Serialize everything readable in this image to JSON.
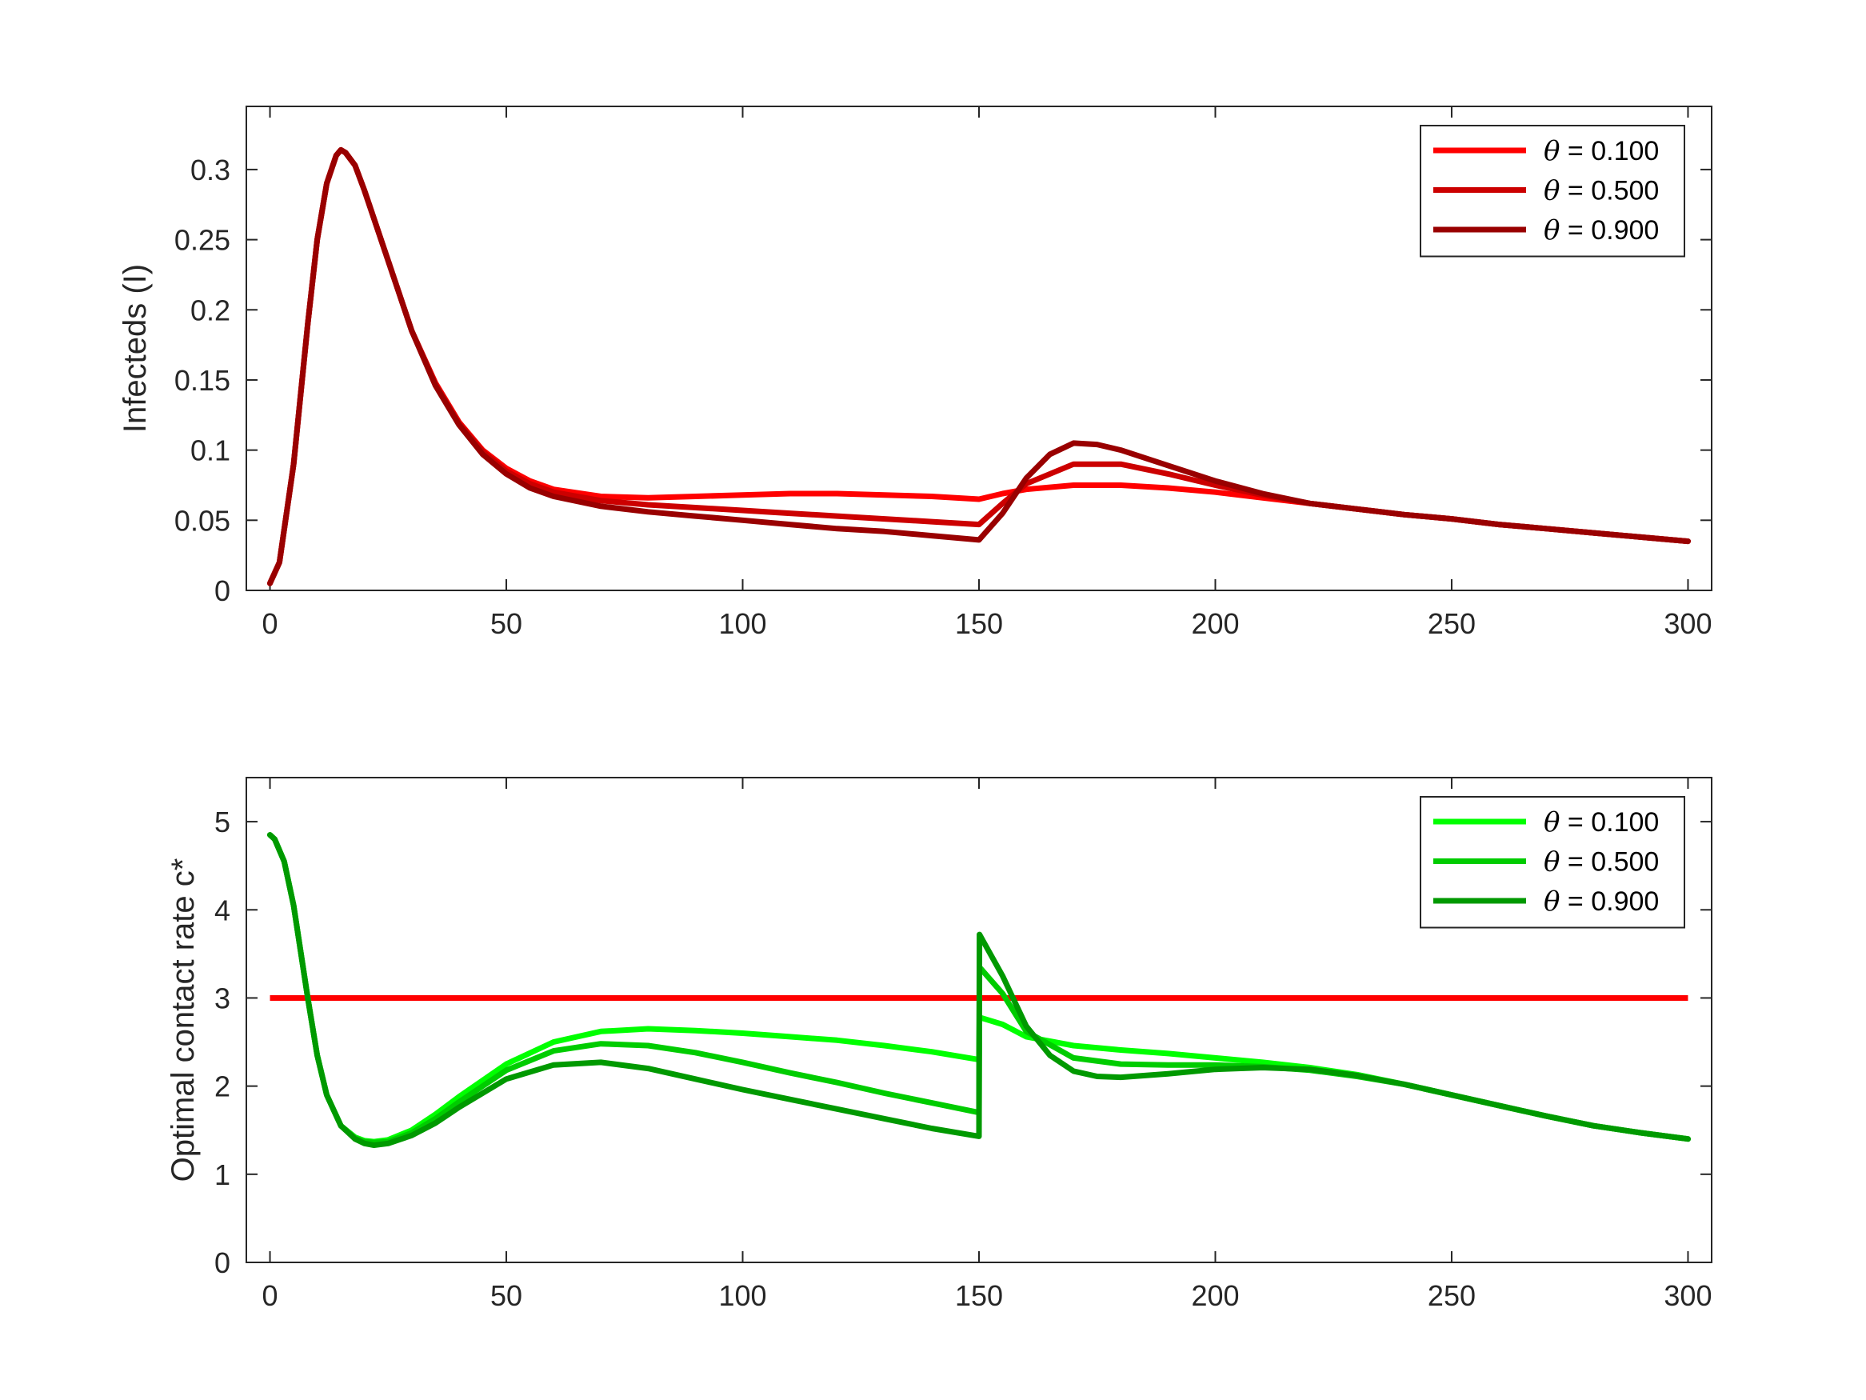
{
  "chart_data": [
    {
      "type": "line",
      "panel": "top",
      "title": "",
      "xlabel": "",
      "ylabel": "Infecteds (I)",
      "xlim": [
        -5,
        305
      ],
      "ylim": [
        0,
        0.345
      ],
      "xticks": [
        0,
        50,
        100,
        150,
        200,
        250,
        300
      ],
      "xtick_labels": [
        "0",
        "50",
        "100",
        "150",
        "200",
        "250",
        "300"
      ],
      "yticks": [
        0,
        0.05,
        0.1,
        0.15,
        0.2,
        0.25,
        0.3
      ],
      "ytick_labels": [
        "0",
        "0.05",
        "0.1",
        "0.15",
        "0.2",
        "0.25",
        "0.3"
      ],
      "grid": false,
      "legend_position": "top-right",
      "series": [
        {
          "name": "θ = 0.100",
          "legend_symbol": "θ",
          "legend_text": " = 0.100",
          "color": "#ff0000",
          "x": [
            0,
            2,
            5,
            8,
            10,
            12,
            14,
            15,
            16,
            18,
            20,
            25,
            30,
            35,
            40,
            45,
            50,
            55,
            60,
            70,
            80,
            90,
            100,
            110,
            120,
            130,
            140,
            150,
            155,
            160,
            170,
            180,
            190,
            200,
            210,
            220,
            230,
            240,
            250,
            260,
            270,
            280,
            290,
            300
          ],
          "y": [
            0.005,
            0.02,
            0.09,
            0.19,
            0.25,
            0.29,
            0.31,
            0.314,
            0.312,
            0.303,
            0.285,
            0.235,
            0.185,
            0.148,
            0.12,
            0.1,
            0.087,
            0.078,
            0.072,
            0.067,
            0.066,
            0.067,
            0.068,
            0.069,
            0.069,
            0.068,
            0.067,
            0.065,
            0.069,
            0.072,
            0.075,
            0.075,
            0.073,
            0.07,
            0.066,
            0.062,
            0.058,
            0.054,
            0.051,
            0.047,
            0.044,
            0.041,
            0.038,
            0.035
          ]
        },
        {
          "name": "θ = 0.500",
          "legend_symbol": "θ",
          "legend_text": " = 0.500",
          "color": "#cc0000",
          "x": [
            0,
            2,
            5,
            8,
            10,
            12,
            14,
            15,
            16,
            18,
            20,
            25,
            30,
            35,
            40,
            45,
            50,
            55,
            60,
            70,
            80,
            90,
            100,
            110,
            120,
            130,
            140,
            150,
            155,
            160,
            170,
            180,
            190,
            200,
            210,
            220,
            230,
            240,
            250,
            260,
            270,
            280,
            290,
            300
          ],
          "y": [
            0.005,
            0.02,
            0.09,
            0.19,
            0.25,
            0.29,
            0.31,
            0.314,
            0.312,
            0.303,
            0.285,
            0.235,
            0.185,
            0.147,
            0.119,
            0.099,
            0.085,
            0.076,
            0.07,
            0.064,
            0.061,
            0.059,
            0.057,
            0.055,
            0.053,
            0.051,
            0.049,
            0.047,
            0.062,
            0.076,
            0.09,
            0.09,
            0.083,
            0.075,
            0.068,
            0.062,
            0.058,
            0.054,
            0.051,
            0.047,
            0.044,
            0.041,
            0.038,
            0.035
          ]
        },
        {
          "name": "θ = 0.900",
          "legend_symbol": "θ",
          "legend_text": " = 0.900",
          "color": "#990000",
          "x": [
            0,
            2,
            5,
            8,
            10,
            12,
            14,
            15,
            16,
            18,
            20,
            25,
            30,
            35,
            40,
            45,
            50,
            55,
            60,
            70,
            80,
            90,
            100,
            110,
            120,
            130,
            140,
            150,
            155,
            160,
            165,
            170,
            175,
            180,
            190,
            200,
            210,
            220,
            230,
            240,
            250,
            260,
            270,
            280,
            290,
            300
          ],
          "y": [
            0.005,
            0.02,
            0.09,
            0.19,
            0.25,
            0.29,
            0.31,
            0.314,
            0.312,
            0.303,
            0.285,
            0.235,
            0.185,
            0.146,
            0.118,
            0.097,
            0.083,
            0.073,
            0.067,
            0.06,
            0.056,
            0.053,
            0.05,
            0.047,
            0.044,
            0.042,
            0.039,
            0.036,
            0.055,
            0.08,
            0.097,
            0.105,
            0.104,
            0.1,
            0.089,
            0.078,
            0.069,
            0.062,
            0.058,
            0.054,
            0.051,
            0.047,
            0.044,
            0.041,
            0.038,
            0.035
          ]
        }
      ]
    },
    {
      "type": "line",
      "panel": "bottom",
      "title": "",
      "xlabel": "",
      "ylabel": "Optimal contact rate c*",
      "xlim": [
        -5,
        305
      ],
      "ylim": [
        0,
        5.5
      ],
      "xticks": [
        0,
        50,
        100,
        150,
        200,
        250,
        300
      ],
      "xtick_labels": [
        "0",
        "50",
        "100",
        "150",
        "200",
        "250",
        "300"
      ],
      "yticks": [
        0,
        1,
        2,
        3,
        4,
        5
      ],
      "ytick_labels": [
        "0",
        "1",
        "2",
        "3",
        "4",
        "5"
      ],
      "grid": false,
      "legend_position": "top-right",
      "baseline": {
        "color": "#ff0000",
        "x": [
          0,
          300
        ],
        "y": [
          3,
          3
        ]
      },
      "series": [
        {
          "name": "θ = 0.100",
          "legend_symbol": "θ",
          "legend_text": " = 0.100",
          "color": "#00ff00",
          "x": [
            0,
            1,
            3,
            5,
            8,
            10,
            12,
            15,
            18,
            20,
            22,
            25,
            30,
            35,
            40,
            50,
            60,
            70,
            80,
            90,
            100,
            110,
            120,
            130,
            140,
            150,
            150.1,
            155,
            160,
            170,
            180,
            190,
            200,
            210,
            220,
            230,
            240,
            250,
            260,
            270,
            280,
            290,
            300
          ],
          "y": [
            4.85,
            4.8,
            4.55,
            4.05,
            3.0,
            2.35,
            1.9,
            1.55,
            1.42,
            1.38,
            1.37,
            1.39,
            1.5,
            1.68,
            1.88,
            2.25,
            2.5,
            2.62,
            2.65,
            2.63,
            2.6,
            2.56,
            2.52,
            2.46,
            2.39,
            2.3,
            2.78,
            2.7,
            2.56,
            2.46,
            2.41,
            2.37,
            2.32,
            2.27,
            2.21,
            2.13,
            2.02,
            1.9,
            1.78,
            1.66,
            1.55,
            1.47,
            1.4
          ]
        },
        {
          "name": "θ = 0.500",
          "legend_symbol": "θ",
          "legend_text": " = 0.500",
          "color": "#00cc00",
          "x": [
            0,
            1,
            3,
            5,
            8,
            10,
            12,
            15,
            18,
            20,
            22,
            25,
            30,
            35,
            40,
            50,
            60,
            70,
            80,
            90,
            100,
            110,
            120,
            130,
            140,
            150,
            150.1,
            155,
            160,
            170,
            180,
            190,
            200,
            210,
            220,
            230,
            240,
            250,
            260,
            270,
            280,
            290,
            300
          ],
          "y": [
            4.85,
            4.8,
            4.55,
            4.05,
            3.0,
            2.35,
            1.9,
            1.55,
            1.41,
            1.37,
            1.36,
            1.37,
            1.47,
            1.63,
            1.82,
            2.18,
            2.4,
            2.48,
            2.46,
            2.38,
            2.27,
            2.15,
            2.04,
            1.92,
            1.81,
            1.7,
            3.35,
            3.05,
            2.62,
            2.32,
            2.25,
            2.24,
            2.24,
            2.22,
            2.18,
            2.11,
            2.02,
            1.9,
            1.78,
            1.66,
            1.55,
            1.47,
            1.4
          ]
        },
        {
          "name": "θ = 0.900",
          "legend_symbol": "θ",
          "legend_text": " = 0.900",
          "color": "#009900",
          "x": [
            0,
            1,
            3,
            5,
            8,
            10,
            12,
            15,
            18,
            20,
            22,
            25,
            30,
            35,
            40,
            50,
            60,
            70,
            80,
            90,
            100,
            110,
            120,
            130,
            140,
            150,
            150.1,
            155,
            160,
            165,
            170,
            175,
            180,
            190,
            200,
            210,
            220,
            230,
            240,
            250,
            260,
            270,
            280,
            290,
            300
          ],
          "y": [
            4.85,
            4.8,
            4.55,
            4.05,
            3.0,
            2.35,
            1.9,
            1.55,
            1.4,
            1.35,
            1.33,
            1.35,
            1.44,
            1.58,
            1.76,
            2.08,
            2.24,
            2.27,
            2.2,
            2.08,
            1.96,
            1.85,
            1.74,
            1.63,
            1.52,
            1.43,
            3.72,
            3.25,
            2.68,
            2.35,
            2.17,
            2.11,
            2.1,
            2.14,
            2.19,
            2.21,
            2.19,
            2.12,
            2.02,
            1.9,
            1.78,
            1.66,
            1.55,
            1.47,
            1.4
          ]
        }
      ]
    }
  ]
}
